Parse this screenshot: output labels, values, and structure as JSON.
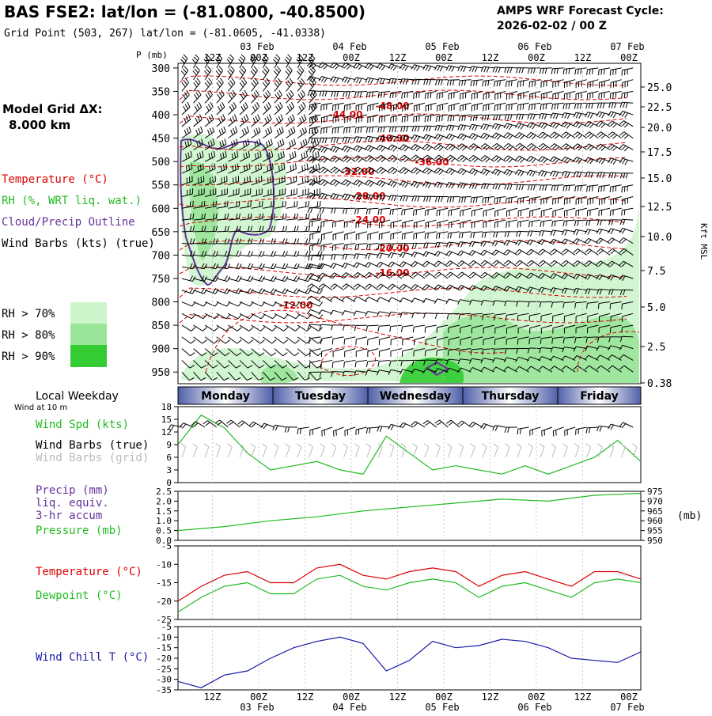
{
  "header": {
    "title": "BAS FSE2:  lat/lon = (-81.0800, -40.8500)",
    "subtitle": "Grid Point (503, 267) lat/lon = (-81.0605, -41.0338)",
    "cycle_label": "AMPS WRF Forecast Cycle:",
    "cycle_value": "2026-02-02 / 00  Z"
  },
  "left_labels": {
    "model_grid_line1": "Model Grid ΔX:",
    "model_grid_line2": "8.000 km",
    "temperature": "Temperature (°C)",
    "rh": "RH (%, WRT liq. wat.)",
    "cloud": "Cloud/Precip Outline",
    "wind": "Wind Barbs (kts) (true)",
    "rh70": "RH > 70%",
    "rh80": "RH > 80%",
    "rh90": "RH > 90%",
    "local_weekday": "Local Weekday",
    "wind_10m": "Wind at 10 m",
    "wind_spd": "Wind Spd (kts)",
    "wind_barbs_true": "Wind Barbs (true)",
    "wind_barbs_grid": "Wind Barbs (grid)",
    "precip": "Precip (mm)",
    "precip2": "liq. equiv.",
    "precip3": "3-hr accum",
    "pressure": "Pressure (mb)",
    "temp2": "Temperature (°C)",
    "dewpoint": "Dewpoint (°C)",
    "windchill": "Wind Chill T (°C)"
  },
  "colors": {
    "temperature": "#dd0000",
    "rh70": "#ccf5cc",
    "rh80": "#99e699",
    "rh90": "#33cc33",
    "cloud": "#663399",
    "wind_spd": "#22bb22",
    "pressure": "#22bb22",
    "dewpoint": "#22bb22",
    "windchill": "#1a1aa8",
    "weekday_band": "#5060a8"
  },
  "time_axis": {
    "top_hours": [
      "12Z",
      "00Z",
      "12Z",
      "00Z",
      "12Z",
      "00Z",
      "12Z",
      "00Z",
      "12Z",
      "00Z"
    ],
    "dates": [
      "03 Feb",
      "04 Feb",
      "05 Feb",
      "06 Feb",
      "07 Feb"
    ],
    "weekdays": [
      "Monday",
      "Tuesday",
      "Wednesday",
      "Thursday",
      "Friday"
    ]
  },
  "chart_data": [
    {
      "type": "line",
      "name": "Vertical cross-section",
      "ylabel": "P (mb)",
      "y_ticks": [
        300,
        350,
        400,
        450,
        500,
        550,
        600,
        650,
        700,
        750,
        800,
        850,
        900,
        950
      ],
      "ylim": [
        975,
        300
      ],
      "right_axis_label": "Kft MSL",
      "right_ticks": [
        "25.0",
        "22.5",
        "20.0",
        "17.5",
        "15.0",
        "12.5",
        "10.0",
        "7.5",
        "5.0",
        "2.5",
        "0.38"
      ],
      "temperature_contour_labels": [
        "-48.00",
        "-44.00",
        "-40.00",
        "-36.00",
        "-32.00",
        "-28.00",
        "-24.00",
        "-20.00",
        "-16.00",
        "-12.00"
      ]
    },
    {
      "type": "line",
      "name": "Wind Spd (kts)",
      "x_hours": [
        0,
        6,
        12,
        18,
        24,
        30,
        36,
        42,
        48,
        54,
        60,
        66,
        72,
        78,
        84,
        90,
        96,
        102,
        108,
        114,
        120
      ],
      "y_ticks": [
        0,
        3,
        6,
        9,
        12,
        15,
        18
      ],
      "ylim": [
        0,
        18
      ],
      "values": [
        9,
        16,
        13,
        7,
        3,
        4,
        5,
        3,
        2,
        11,
        7,
        3,
        4,
        3,
        2,
        4,
        2,
        4,
        6,
        10,
        5
      ]
    },
    {
      "type": "line",
      "name": "Pressure (mb)",
      "y_ticks_left": [
        "0.0",
        "0.5",
        "1.0",
        "1.5",
        "2.0",
        "2.5"
      ],
      "y_ticks_right": [
        950,
        955,
        960,
        965,
        970,
        975
      ],
      "right_unit": "(mb)",
      "ylim": [
        950,
        975
      ],
      "x_hours": [
        0,
        12,
        24,
        36,
        48,
        60,
        72,
        84,
        96,
        108,
        120
      ],
      "values": [
        955,
        957,
        960,
        962,
        965,
        967,
        969,
        971,
        970,
        973,
        974
      ]
    },
    {
      "type": "line",
      "name": "Temperature / Dewpoint (°C)",
      "y_ticks": [
        -5,
        -10,
        -15,
        -20,
        -25
      ],
      "ylim": [
        -25,
        -5
      ],
      "x_hours": [
        0,
        6,
        12,
        18,
        24,
        30,
        36,
        42,
        48,
        54,
        60,
        66,
        72,
        78,
        84,
        90,
        96,
        102,
        108,
        114,
        120
      ],
      "series": [
        {
          "name": "Temperature (°C)",
          "values": [
            -20,
            -16,
            -13,
            -12,
            -15,
            -15,
            -11,
            -10,
            -13,
            -14,
            -12,
            -11,
            -12,
            -16,
            -13,
            -12,
            -14,
            -16,
            -12,
            -12,
            -14
          ]
        },
        {
          "name": "Dewpoint (°C)",
          "values": [
            -23,
            -19,
            -16,
            -15,
            -18,
            -18,
            -14,
            -13,
            -16,
            -17,
            -15,
            -14,
            -15,
            -19,
            -16,
            -15,
            -17,
            -19,
            -15,
            -14,
            -15
          ]
        }
      ]
    },
    {
      "type": "line",
      "name": "Wind Chill T (°C)",
      "y_ticks": [
        -5,
        -10,
        -15,
        -20,
        -25,
        -30,
        -35
      ],
      "ylim": [
        -35,
        -5
      ],
      "x_hours": [
        0,
        6,
        12,
        18,
        24,
        30,
        36,
        42,
        48,
        54,
        60,
        66,
        72,
        78,
        84,
        90,
        96,
        102,
        108,
        114,
        120
      ],
      "values": [
        -31,
        -34,
        -28,
        -26,
        -20,
        -15,
        -12,
        -10,
        -13,
        -26,
        -21,
        -12,
        -15,
        -14,
        -11,
        -12,
        -15,
        -20,
        -21,
        -22,
        -17
      ]
    }
  ]
}
